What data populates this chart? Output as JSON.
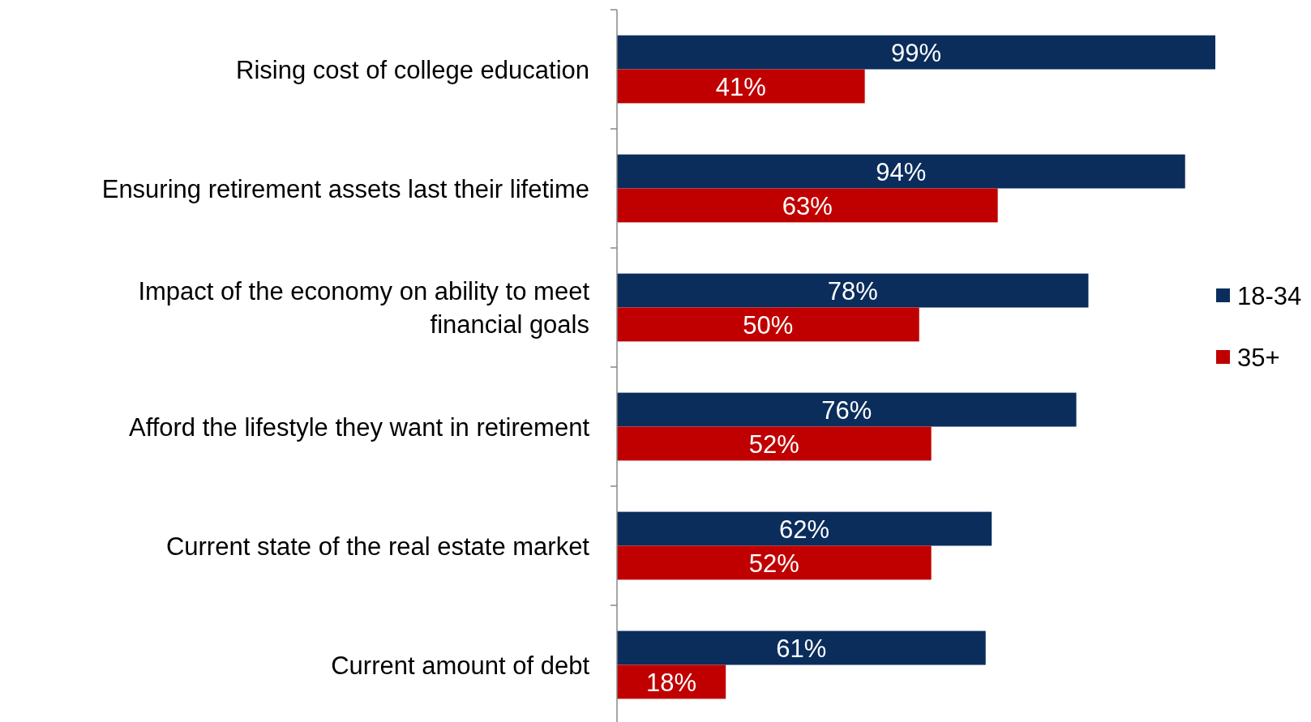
{
  "chart_data": {
    "type": "bar",
    "orientation": "horizontal",
    "categories": [
      "Rising cost of college education",
      "Ensuring retirement assets last their lifetime",
      "Impact of the economy on ability to meet financial goals",
      "Afford the lifestyle they want in retirement",
      "Current state of the real estate market",
      "Current amount of debt"
    ],
    "series": [
      {
        "name": "18-34",
        "color": "#0b2d5c",
        "values": [
          99,
          94,
          78,
          76,
          62,
          61
        ],
        "value_labels": [
          "99%",
          "94%",
          "78%",
          "76%",
          "62%",
          "61%"
        ]
      },
      {
        "name": "35+",
        "color": "#c00000",
        "values": [
          41,
          63,
          50,
          52,
          52,
          18
        ],
        "value_labels": [
          "41%",
          "63%",
          "50%",
          "52%",
          "52%",
          "18%"
        ]
      }
    ],
    "legend": "right"
  }
}
